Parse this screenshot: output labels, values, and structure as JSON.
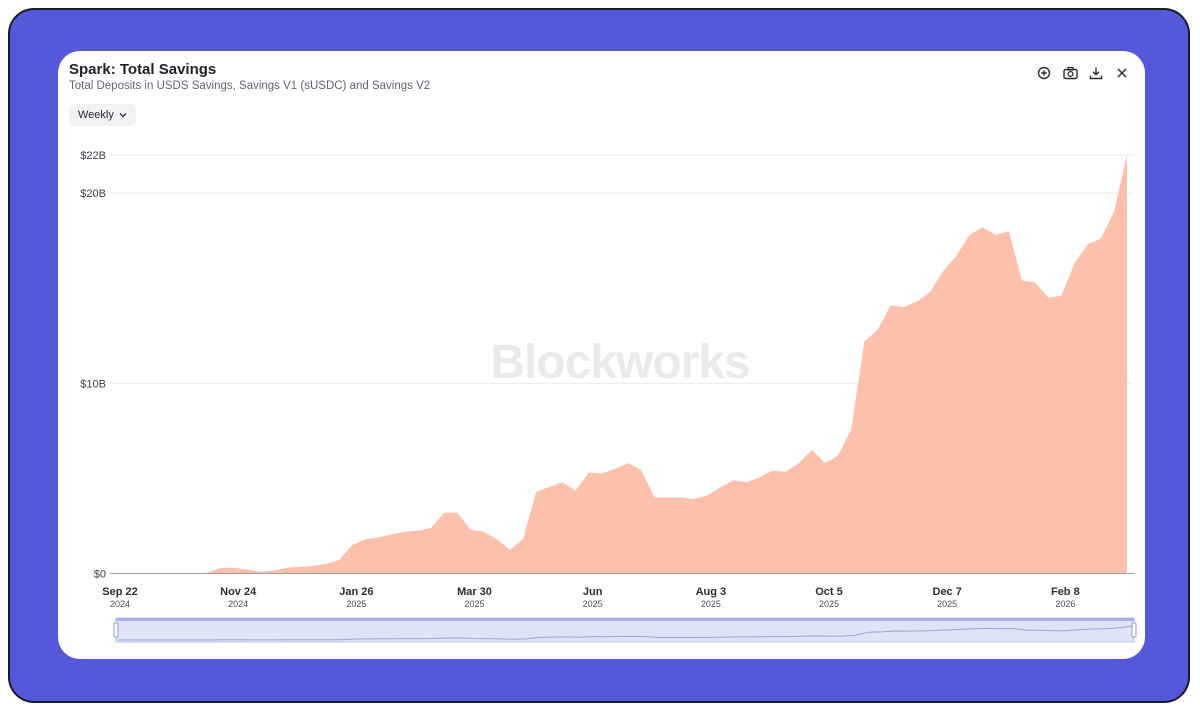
{
  "header": {
    "title": "Spark: Total Savings",
    "subtitle": "Total Deposits in USDS Savings, Savings V1 (sUSDC) and Savings V2"
  },
  "controls": {
    "interval_label": "Weekly"
  },
  "toolbar": {
    "icons": [
      "zoom-in-icon",
      "camera-icon",
      "download-icon",
      "close-icon"
    ]
  },
  "watermark": "Blockworks",
  "colors": {
    "frame": "#5558d9",
    "area_fill": "#fcc1ad",
    "gridline": "#e8e9ec"
  },
  "chart_data": {
    "type": "area",
    "title": "Spark: Total Savings",
    "subtitle": "Total Deposits in USDS Savings, Savings V1 (sUSDC) and Savings V2",
    "xlabel": "",
    "ylabel": "",
    "x_unit": "week",
    "ylim": [
      0,
      22
    ],
    "y_ticks": [
      {
        "value": 0,
        "label": "$0"
      },
      {
        "value": 10,
        "label": "$10B"
      },
      {
        "value": 20,
        "label": "$20B"
      },
      {
        "value": 22,
        "label": "$22B"
      }
    ],
    "x_ticks": [
      {
        "label": "Sep 22",
        "sub": "2024"
      },
      {
        "label": "Nov 24",
        "sub": "2024"
      },
      {
        "label": "Jan 26",
        "sub": "2025"
      },
      {
        "label": "Mar 30",
        "sub": "2025"
      },
      {
        "label": "Jun",
        "sub": "2025"
      },
      {
        "label": "Aug 3",
        "sub": "2025"
      },
      {
        "label": "Oct 5",
        "sub": "2025"
      },
      {
        "label": "Dec 7",
        "sub": "2025"
      },
      {
        "label": "Feb 8",
        "sub": "2026"
      }
    ],
    "x_tick_week_index": [
      0,
      9,
      18,
      27,
      36,
      45,
      54,
      63,
      72
    ],
    "grid": true,
    "legend": "none",
    "series": [
      {
        "values": [
          0,
          0,
          0,
          0,
          0,
          0,
          0,
          0.05,
          0.3,
          0.3,
          0.2,
          0.1,
          0.15,
          0.3,
          0.35,
          0.4,
          0.5,
          0.7,
          1.5,
          1.8,
          1.9,
          2.05,
          2.2,
          2.25,
          2.4,
          3.2,
          3.2,
          2.3,
          2.2,
          1.8,
          1.25,
          1.8,
          4.3,
          4.55,
          4.8,
          4.35,
          5.3,
          5.25,
          5.5,
          5.8,
          5.45,
          4.0,
          4.0,
          4.0,
          3.9,
          4.1,
          4.5,
          4.9,
          4.8,
          5.05,
          5.4,
          5.35,
          5.8,
          6.5,
          5.8,
          6.2,
          7.6,
          12.2,
          12.8,
          14.1,
          14.0,
          14.3,
          14.8,
          15.9,
          16.7,
          17.8,
          18.2,
          17.8,
          18.0,
          15.4,
          15.3,
          14.5,
          14.6,
          16.3,
          17.3,
          17.6,
          19.0,
          22.0
        ]
      }
    ]
  }
}
